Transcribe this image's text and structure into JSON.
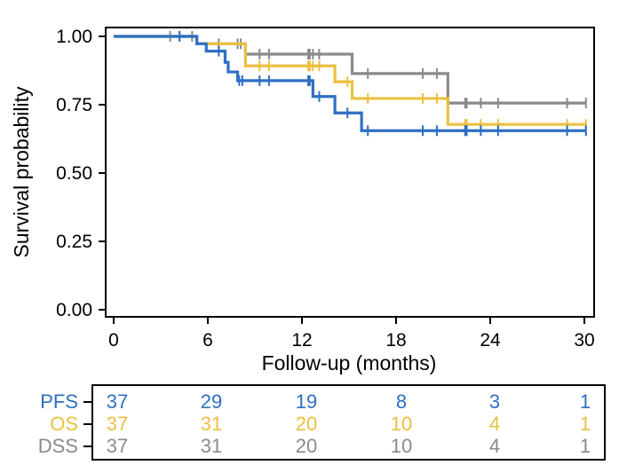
{
  "chart_data": {
    "type": "line",
    "subtype": "kaplan-meier",
    "title": "",
    "xlabel": "Follow-up (months)",
    "ylabel": "Survival probability",
    "xlim": [
      0,
      30
    ],
    "ylim": [
      0,
      1
    ],
    "xticks": [
      0,
      6,
      12,
      18,
      24,
      30
    ],
    "xtick_labels": [
      "0",
      "6",
      "12",
      "18",
      "24",
      "30"
    ],
    "yticks": [
      0,
      0.25,
      0.5,
      0.75,
      1.0
    ],
    "ytick_labels": [
      "0.00",
      "0.25",
      "0.50",
      "0.75",
      "1.00"
    ],
    "grid": false,
    "legend": "none",
    "series": [
      {
        "name": "DSS",
        "color": "#8A8A8A",
        "steps": [
          [
            0,
            1.0
          ],
          [
            5.3,
            0.973
          ],
          [
            8.4,
            0.935
          ],
          [
            15.2,
            0.864
          ],
          [
            21.3,
            0.756
          ],
          [
            30.1,
            0.756
          ]
        ],
        "censored": [
          [
            3.6,
            1.0
          ],
          [
            4.2,
            1.0
          ],
          [
            5.0,
            1.0
          ],
          [
            6.7,
            0.973
          ],
          [
            7.9,
            0.973
          ],
          [
            8.1,
            0.973
          ],
          [
            9.3,
            0.935
          ],
          [
            9.9,
            0.935
          ],
          [
            12.4,
            0.935
          ],
          [
            12.5,
            0.935
          ],
          [
            12.7,
            0.935
          ],
          [
            13.1,
            0.935
          ],
          [
            16.2,
            0.864
          ],
          [
            19.7,
            0.864
          ],
          [
            20.6,
            0.864
          ],
          [
            22.4,
            0.756
          ],
          [
            22.5,
            0.756
          ],
          [
            23.4,
            0.756
          ],
          [
            24.5,
            0.756
          ],
          [
            28.9,
            0.756
          ],
          [
            30.1,
            0.756
          ]
        ]
      },
      {
        "name": "OS",
        "color": "#EBC03F",
        "steps": [
          [
            0,
            1.0
          ],
          [
            5.3,
            0.973
          ],
          [
            8.4,
            0.892
          ],
          [
            14.1,
            0.834
          ],
          [
            15.2,
            0.773
          ],
          [
            21.3,
            0.678
          ],
          [
            30.1,
            0.678
          ]
        ],
        "censored": [
          [
            9.3,
            0.892
          ],
          [
            9.9,
            0.892
          ],
          [
            12.4,
            0.892
          ],
          [
            12.5,
            0.892
          ],
          [
            12.7,
            0.892
          ],
          [
            13.1,
            0.892
          ],
          [
            14.9,
            0.834
          ],
          [
            16.2,
            0.773
          ],
          [
            19.7,
            0.773
          ],
          [
            20.6,
            0.773
          ],
          [
            22.4,
            0.678
          ],
          [
            22.5,
            0.678
          ],
          [
            23.4,
            0.678
          ],
          [
            24.5,
            0.678
          ],
          [
            28.9,
            0.678
          ],
          [
            30.1,
            0.678
          ]
        ]
      },
      {
        "name": "PFS",
        "color": "#2E6FC4",
        "steps": [
          [
            0,
            1.0
          ],
          [
            5.3,
            0.973
          ],
          [
            5.9,
            0.946
          ],
          [
            7.1,
            0.905
          ],
          [
            7.3,
            0.87
          ],
          [
            7.9,
            0.838
          ],
          [
            12.7,
            0.78
          ],
          [
            14.1,
            0.72
          ],
          [
            15.8,
            0.655
          ],
          [
            30.1,
            0.655
          ]
        ],
        "censored": [
          [
            4.2,
            1.0
          ],
          [
            6.7,
            0.946
          ],
          [
            8.0,
            0.838
          ],
          [
            8.2,
            0.838
          ],
          [
            9.3,
            0.838
          ],
          [
            9.9,
            0.838
          ],
          [
            12.4,
            0.838
          ],
          [
            12.5,
            0.838
          ],
          [
            13.1,
            0.78
          ],
          [
            14.9,
            0.72
          ],
          [
            16.2,
            0.655
          ],
          [
            19.7,
            0.655
          ],
          [
            20.6,
            0.655
          ],
          [
            22.4,
            0.655
          ],
          [
            22.5,
            0.655
          ],
          [
            23.4,
            0.655
          ],
          [
            24.5,
            0.655
          ],
          [
            28.9,
            0.655
          ],
          [
            30.1,
            0.655
          ]
        ]
      }
    ],
    "risk_table": {
      "times": [
        0,
        6,
        12,
        18,
        24,
        30
      ],
      "rows": [
        {
          "name": "PFS",
          "color": "#2E6FC4",
          "values": [
            37,
            29,
            19,
            8,
            3,
            1
          ]
        },
        {
          "name": "OS",
          "color": "#EBC03F",
          "values": [
            37,
            31,
            20,
            10,
            4,
            1
          ]
        },
        {
          "name": "DSS",
          "color": "#8A8A8A",
          "values": [
            37,
            31,
            20,
            10,
            4,
            1
          ]
        }
      ]
    }
  }
}
